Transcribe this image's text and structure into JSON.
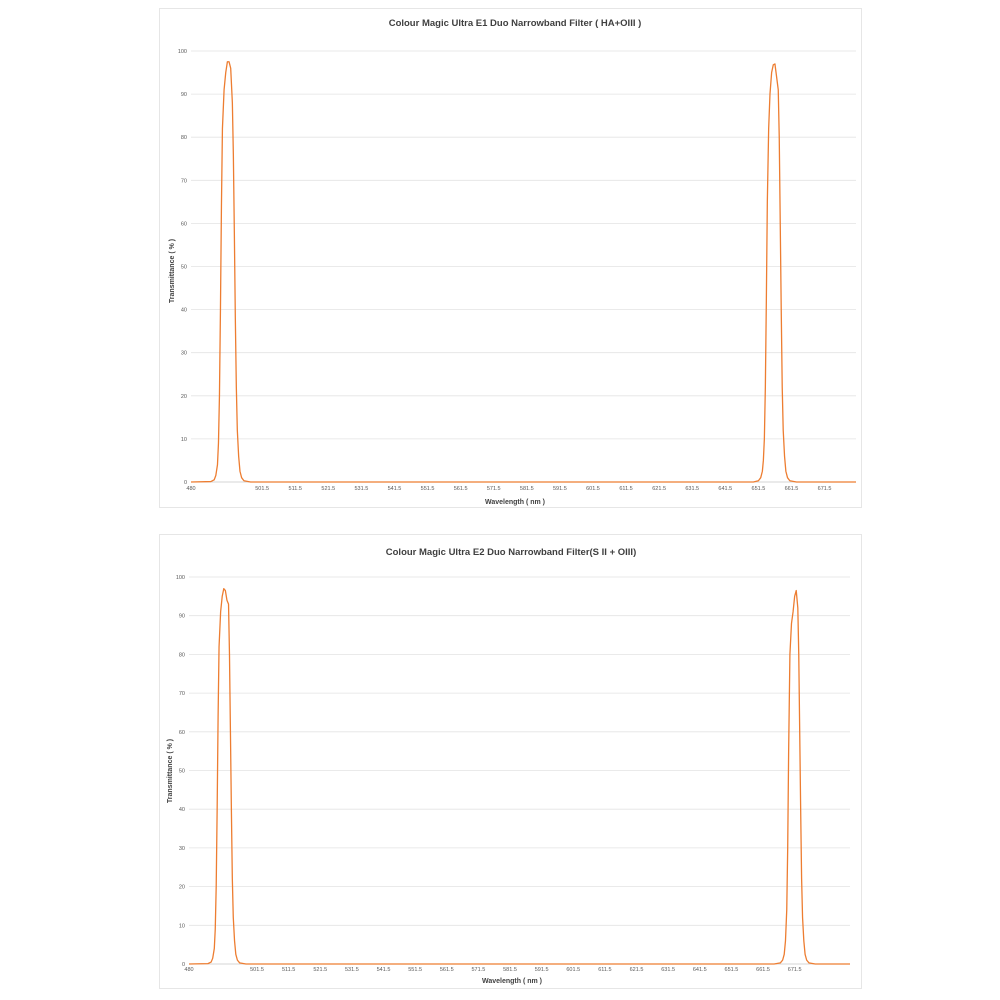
{
  "chart_data": [
    {
      "type": "line",
      "title": "Colour Magic Ultra E1 Duo Narrowband Filter ( HA+OIII )",
      "xlabel": "Wavelength ( nm )",
      "ylabel": "Transmittance ( % )",
      "xlim": [
        480,
        681
      ],
      "ylim": [
        0,
        100
      ],
      "yticks": [
        "0",
        "10",
        "20",
        "30",
        "40",
        "50",
        "60",
        "70",
        "80",
        "90",
        "100"
      ],
      "xtick_values": [
        480,
        491.5,
        501.5,
        511.5,
        521.5,
        531.5,
        541.5,
        551.5,
        561.5,
        571.5,
        581.5,
        591.5,
        601.5,
        611.5,
        621.5,
        631.5,
        641.5,
        651.5,
        661.5,
        671.5
      ],
      "xtick_labels": [
        "480",
        "",
        "501.5",
        "511.5",
        "521.5",
        "531.5",
        "541.5",
        "551.5",
        "561.5",
        "571.5",
        "581.5",
        "591.5",
        "601.5",
        "611.5",
        "621.5",
        "631.5",
        "641.5",
        "651.5",
        "661.5",
        "671.5"
      ],
      "color": "#ed7d31",
      "series": [
        {
          "x": [
            480,
            486,
            487,
            487.5,
            488,
            488.3,
            488.6,
            488.9,
            489.2,
            489.5,
            490,
            490.5,
            491,
            491.5,
            492,
            492.5,
            492.8,
            493.1,
            493.4,
            493.7,
            494,
            494.4,
            494.8,
            495.3,
            496,
            498,
            520,
            560,
            600,
            640,
            650,
            651.5,
            652.2,
            652.7,
            653,
            653.3,
            653.6,
            653.9,
            654.2,
            654.6,
            655,
            655.5,
            656,
            656.5,
            657,
            657.5,
            657.8,
            658.1,
            658.4,
            658.7,
            659,
            659.4,
            659.8,
            660.3,
            661,
            663,
            681
          ],
          "y": [
            0,
            0.1,
            0.5,
            1.5,
            4,
            9,
            20,
            40,
            64,
            82,
            91,
            95,
            97.5,
            97.5,
            96,
            88,
            76,
            58,
            38,
            22,
            12,
            6,
            2.5,
            1,
            0.3,
            0,
            0,
            0,
            0,
            0,
            0,
            0.3,
            1,
            2.5,
            5,
            10,
            22,
            42,
            65,
            82,
            90,
            95,
            96.8,
            97,
            94,
            91,
            80,
            60,
            40,
            22,
            12,
            6,
            2.5,
            1,
            0.3,
            0,
            0
          ]
        }
      ]
    },
    {
      "type": "line",
      "title": "Colour Magic Ultra E2 Duo Narrowband Filter(S II + OIII)",
      "xlabel": "Wavelength ( nm )",
      "ylabel": "Transmittance ( % )",
      "xlim": [
        480,
        689
      ],
      "ylim": [
        0,
        100
      ],
      "yticks": [
        "0",
        "10",
        "20",
        "30",
        "40",
        "50",
        "60",
        "70",
        "80",
        "90",
        "100"
      ],
      "xtick_values": [
        480,
        491.5,
        501.5,
        511.5,
        521.5,
        531.5,
        541.5,
        551.5,
        561.5,
        571.5,
        581.5,
        591.5,
        601.5,
        611.5,
        621.5,
        631.5,
        641.5,
        651.5,
        661.5,
        671.5,
        681.5
      ],
      "xtick_labels": [
        "480",
        "",
        "501.5",
        "511.5",
        "521.5",
        "531.5",
        "541.5",
        "551.5",
        "561.5",
        "571.5",
        "581.5",
        "591.5",
        "601.5",
        "611.5",
        "621.5",
        "631.5",
        "641.5",
        "651.5",
        "661.5",
        "671.5",
        ""
      ],
      "color": "#ed7d31",
      "series": [
        {
          "x": [
            480,
            486,
            487,
            487.5,
            488,
            488.3,
            488.6,
            488.9,
            489.2,
            489.5,
            490,
            490.5,
            491,
            491.5,
            492,
            492.5,
            492.8,
            493.1,
            493.4,
            493.7,
            494,
            494.4,
            494.8,
            495.3,
            496,
            498,
            520,
            560,
            600,
            640,
            665,
            667,
            667.7,
            668.2,
            668.6,
            669,
            669.3,
            669.6,
            670,
            670.5,
            671,
            671.5,
            672,
            672.5,
            672.8,
            673.1,
            673.4,
            673.7,
            674,
            674.4,
            674.8,
            675.3,
            676,
            678,
            689
          ],
          "y": [
            0,
            0.1,
            0.5,
            1.5,
            4,
            9,
            20,
            40,
            64,
            82,
            91,
            95,
            97,
            96.5,
            94,
            93,
            80,
            60,
            40,
            22,
            12,
            6,
            2.5,
            1,
            0.3,
            0,
            0,
            0,
            0,
            0,
            0,
            0.3,
            1,
            2.5,
            6,
            14,
            30,
            55,
            80,
            88,
            91,
            95,
            96.5,
            92,
            80,
            60,
            40,
            22,
            12,
            6,
            2.5,
            1,
            0.3,
            0,
            0
          ]
        }
      ]
    }
  ]
}
